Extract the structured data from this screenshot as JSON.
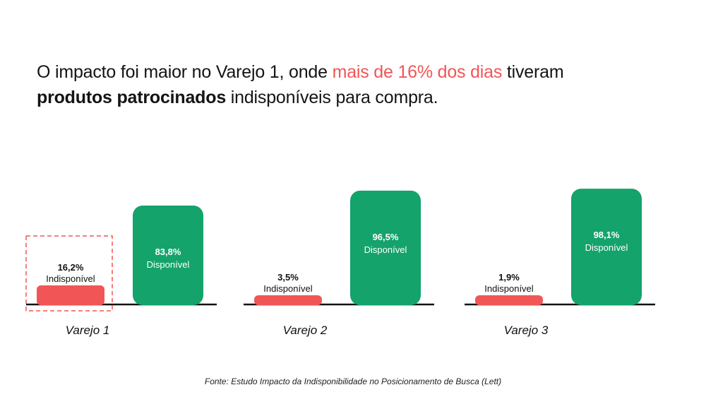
{
  "headline": {
    "part1": "O impacto foi maior no Varejo 1, onde ",
    "highlight": "mais de 16% dos dias",
    "part2": " tiveram",
    "bold": "produtos patrocinados",
    "part3": " indisponíveis para compra."
  },
  "colors": {
    "unavailable": "#f25555",
    "available": "#14a36b",
    "baseline": "#111111",
    "highlight_box": "#f25555"
  },
  "chart_data": {
    "type": "bar",
    "categories": [
      "Varejo 1",
      "Varejo 2",
      "Varejo 3"
    ],
    "series": [
      {
        "name": "Indisponível",
        "values": [
          16.2,
          3.5,
          1.9
        ],
        "labels": [
          "16,2%",
          "3,5%",
          "1,9%"
        ]
      },
      {
        "name": "Disponível",
        "values": [
          83.8,
          96.5,
          98.1
        ],
        "labels": [
          "83,8%",
          "96,5%",
          "98,1%"
        ]
      }
    ],
    "highlighted_category": "Varejo 1",
    "ylim": [
      0,
      100
    ],
    "grid": false,
    "legend": "none"
  },
  "source": "Fonte: Estudo Impacto da Indisponibilidade no Posicionamento de Busca (Lett)"
}
